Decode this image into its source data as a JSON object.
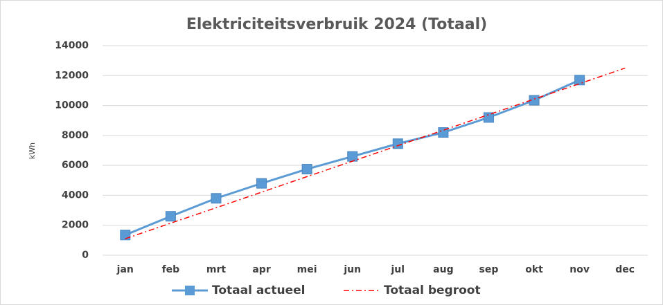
{
  "chart_data": {
    "type": "line",
    "title": "Elektriciteitsverbruik 2024 (Totaal)",
    "y_label": "kWh",
    "categories": [
      "jan",
      "feb",
      "mrt",
      "apr",
      "mei",
      "jun",
      "jul",
      "aug",
      "sep",
      "okt",
      "nov",
      "dec"
    ],
    "series": [
      {
        "name": "Totaal actueel",
        "color": "#5b9bd5",
        "line_style": "solid",
        "marker": "square",
        "values": [
          1350,
          2600,
          3800,
          4800,
          5750,
          6600,
          7450,
          8200,
          9200,
          10350,
          11700,
          null
        ]
      },
      {
        "name": "Totaal begroot",
        "color": "#ff0000",
        "line_style": "dashdot",
        "marker": "none",
        "values": [
          1100,
          2140,
          3170,
          4210,
          5250,
          6280,
          7320,
          8350,
          9390,
          10430,
          11460,
          12500
        ]
      }
    ],
    "ylim": [
      0,
      14000
    ],
    "yticks": [
      0,
      2000,
      4000,
      6000,
      8000,
      10000,
      12000,
      14000
    ],
    "grid": true,
    "legend": "bottom"
  }
}
